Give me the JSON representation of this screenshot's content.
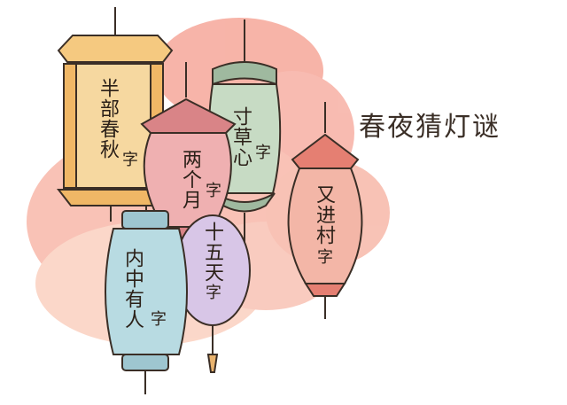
{
  "title": "春夜猜灯谜",
  "lanterns": [
    {
      "id": "yellow-lantern",
      "color": "#f3cf87",
      "riddle": "半部春秋",
      "answer_char": "字"
    },
    {
      "id": "green-lantern",
      "color": "#b7cdb7",
      "riddle": "寸草心",
      "answer_char": "字"
    },
    {
      "id": "pink-lantern",
      "color": "#e8a7a8",
      "riddle": "两个月",
      "answer_char": "字"
    },
    {
      "id": "blue-lantern",
      "color": "#a8cfd6",
      "riddle": "内中有人",
      "answer_char": "字"
    },
    {
      "id": "purple-lantern",
      "color": "#d3c0e2",
      "riddle": "十五天",
      "answer_char": "字"
    },
    {
      "id": "red-lantern",
      "color": "#f1b1a3",
      "riddle": "又进村",
      "answer_char": "字"
    }
  ]
}
